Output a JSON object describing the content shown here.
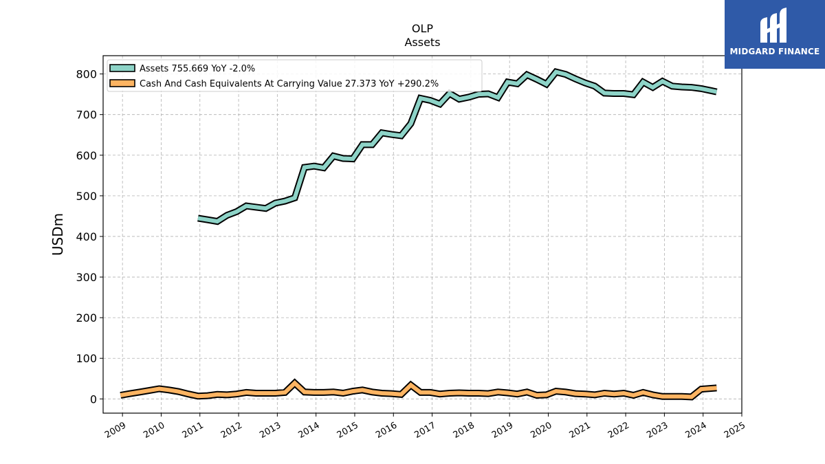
{
  "chart_data": {
    "type": "line",
    "title": "OLP",
    "subtitle": "Assets",
    "xlabel": "",
    "ylabel": "USDm",
    "xlim": [
      2008.5,
      2025.0
    ],
    "ylim": [
      -35,
      845
    ],
    "yticks": [
      0,
      100,
      200,
      300,
      400,
      500,
      600,
      700,
      800
    ],
    "xticks": [
      2009,
      2010,
      2011,
      2012,
      2013,
      2014,
      2015,
      2016,
      2017,
      2018,
      2019,
      2020,
      2021,
      2022,
      2023,
      2024,
      2025
    ],
    "grid": true,
    "legend_position": "top-left",
    "series": [
      {
        "name": "Assets  755.669 YoY -2.0%",
        "color": "#8dd3c7",
        "x": [
          2010.95,
          2011.2,
          2011.45,
          2011.7,
          2011.95,
          2012.2,
          2012.45,
          2012.7,
          2012.95,
          2013.2,
          2013.45,
          2013.7,
          2013.95,
          2014.2,
          2014.45,
          2014.7,
          2014.95,
          2015.2,
          2015.45,
          2015.7,
          2015.95,
          2016.2,
          2016.45,
          2016.7,
          2016.95,
          2017.2,
          2017.45,
          2017.7,
          2017.95,
          2018.2,
          2018.45,
          2018.7,
          2018.95,
          2019.2,
          2019.45,
          2019.7,
          2019.95,
          2020.2,
          2020.45,
          2020.7,
          2020.95,
          2021.2,
          2021.45,
          2021.7,
          2021.95,
          2022.2,
          2022.45,
          2022.7,
          2022.95,
          2023.2,
          2023.45,
          2023.7,
          2023.95,
          2024.2,
          2024.35
        ],
        "values": [
          445,
          441,
          437,
          452,
          461,
          475,
          472,
          469,
          482,
          487,
          495,
          570,
          573,
          569,
          598,
          592,
          591,
          626,
          626,
          655,
          651,
          648,
          678,
          740,
          735,
          726,
          752,
          738,
          743,
          750,
          751,
          742,
          780,
          776,
          798,
          787,
          775,
          805,
          799,
          788,
          778,
          770,
          753,
          752,
          752,
          749,
          780,
          767,
          782,
          770,
          768,
          767,
          764,
          759,
          756
        ]
      },
      {
        "name": "Cash And Cash Equivalents At Carrying Value  27.373 YoY +290.2%",
        "color": "#fdb462",
        "x": [
          2008.95,
          2009.2,
          2009.45,
          2009.7,
          2009.95,
          2010.2,
          2010.45,
          2010.7,
          2010.95,
          2011.2,
          2011.45,
          2011.7,
          2011.95,
          2012.2,
          2012.45,
          2012.7,
          2012.95,
          2013.2,
          2013.45,
          2013.7,
          2013.95,
          2014.2,
          2014.45,
          2014.7,
          2014.95,
          2015.2,
          2015.45,
          2015.7,
          2015.95,
          2016.2,
          2016.45,
          2016.7,
          2016.95,
          2017.2,
          2017.45,
          2017.7,
          2017.95,
          2018.2,
          2018.45,
          2018.7,
          2018.95,
          2019.2,
          2019.45,
          2019.7,
          2019.95,
          2020.2,
          2020.45,
          2020.7,
          2020.95,
          2021.2,
          2021.45,
          2021.7,
          2021.95,
          2022.2,
          2022.45,
          2022.7,
          2022.95,
          2023.2,
          2023.45,
          2023.7,
          2023.95,
          2024.35
        ],
        "values": [
          9,
          13,
          17,
          21,
          25,
          22,
          18,
          12,
          7,
          8,
          11,
          10,
          12,
          16,
          14,
          14,
          14,
          16,
          39,
          17,
          16,
          16,
          17,
          14,
          19,
          22,
          17,
          14,
          13,
          11,
          34,
          16,
          16,
          12,
          14,
          15,
          14,
          14,
          13,
          17,
          15,
          12,
          17,
          9,
          10,
          19,
          17,
          13,
          12,
          10,
          14,
          12,
          14,
          9,
          16,
          10,
          6,
          6,
          6,
          5,
          24,
          27
        ]
      }
    ]
  }
}
